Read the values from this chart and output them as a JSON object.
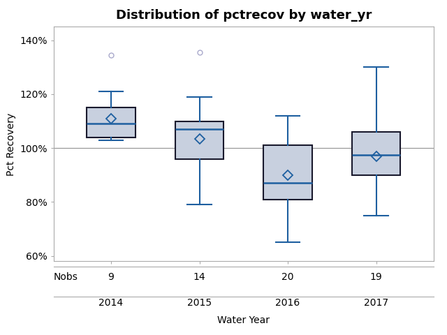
{
  "title": "Distribution of pctrecov by water_yr",
  "xlabel": "Water Year",
  "ylabel": "Pct Recovery",
  "categories": [
    2014,
    2015,
    2016,
    2017
  ],
  "nobs": [
    9,
    14,
    20,
    19
  ],
  "box_data": {
    "2014": {
      "q1": 104.0,
      "median": 109.0,
      "q3": 115.0,
      "mean": 111.0,
      "whislo": 103.0,
      "whishi": 121.0,
      "fliers": [
        134.5
      ]
    },
    "2015": {
      "q1": 96.0,
      "median": 107.0,
      "q3": 110.0,
      "mean": 103.5,
      "whislo": 79.0,
      "whishi": 119.0,
      "fliers": [
        135.5
      ]
    },
    "2016": {
      "q1": 81.0,
      "median": 87.0,
      "q3": 101.0,
      "mean": 90.0,
      "whislo": 65.0,
      "whishi": 112.0,
      "fliers": []
    },
    "2017": {
      "q1": 90.0,
      "median": 97.5,
      "q3": 106.0,
      "mean": 97.0,
      "whislo": 75.0,
      "whishi": 130.0,
      "fliers": []
    }
  },
  "box_facecolor": "#c8d0df",
  "box_edgecolor": "#1a1a2e",
  "median_color": "#1e5fa0",
  "whisker_color": "#1e5fa0",
  "flier_color": "#aaaacc",
  "mean_color": "#1e5fa0",
  "ref_line_y": 100.0,
  "ref_line_color": "#999999",
  "ylim_min": 58,
  "ylim_max": 145,
  "yticks": [
    60,
    80,
    100,
    120,
    140
  ],
  "ytick_labels": [
    "60%",
    "80%",
    "100%",
    "120%",
    "140%"
  ],
  "background_color": "#ffffff",
  "title_fontsize": 13,
  "label_fontsize": 10,
  "tick_fontsize": 10,
  "nobs_fontsize": 10
}
